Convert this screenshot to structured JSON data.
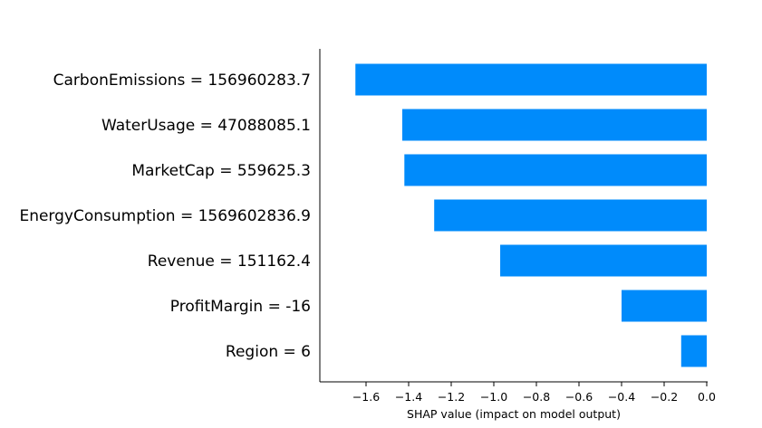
{
  "chart_data": {
    "type": "bar",
    "orientation": "horizontal",
    "categories": [
      "CarbonEmissions = 156960283.7",
      "WaterUsage = 47088085.1",
      "MarketCap = 559625.3",
      "EnergyConsumption = 1569602836.9",
      "Revenue = 151162.4",
      "ProfitMargin = -16",
      "Region = 6"
    ],
    "values": [
      -1.65,
      -1.43,
      -1.42,
      -1.28,
      -0.97,
      -0.4,
      -0.12
    ],
    "bar_color": "#008bfb",
    "xlabel": "SHAP value (impact on model output)",
    "ylabel": "",
    "title": "",
    "xlim": [
      -1.72,
      0.0
    ],
    "xticks": [
      -1.6,
      -1.4,
      -1.2,
      -1.0,
      -0.8,
      -0.6,
      -0.4,
      -0.2,
      0.0
    ],
    "xtick_labels": [
      "−1.6",
      "−1.4",
      "−1.2",
      "−1.0",
      "−0.8",
      "−0.6",
      "−0.4",
      "−0.2",
      "0.0"
    ],
    "grid": false,
    "legend": "none"
  }
}
